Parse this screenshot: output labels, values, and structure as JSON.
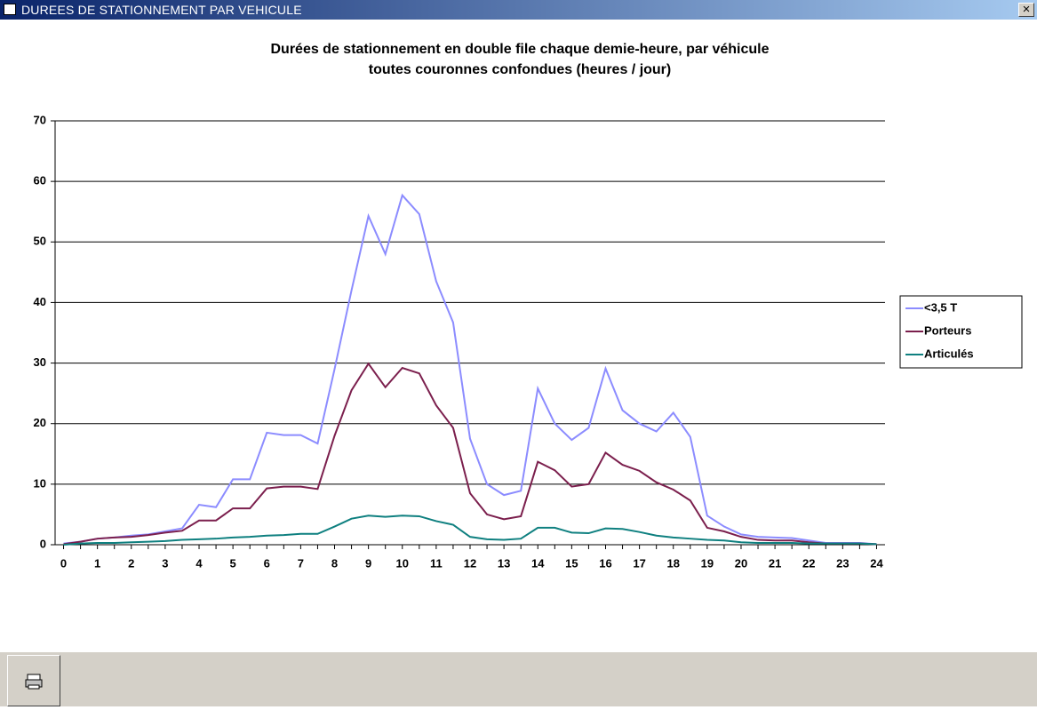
{
  "window": {
    "title": "DUREES DE STATIONNEMENT PAR VEHICULE"
  },
  "chart_data": {
    "type": "line",
    "title": [
      "Durées de stationnement en double file chaque demie-heure, par véhicule",
      "toutes couronnes confondues (heures / jour)"
    ],
    "categories": [
      "0",
      null,
      "1",
      null,
      "2",
      null,
      "3",
      null,
      "4",
      null,
      "5",
      null,
      "6",
      null,
      "7",
      null,
      "8",
      null,
      "9",
      null,
      "10",
      null,
      "11",
      null,
      "12",
      null,
      "13",
      null,
      "14",
      null,
      "15",
      null,
      "16",
      null,
      "17",
      null,
      "18",
      null,
      "19",
      null,
      "20",
      null,
      "21",
      null,
      "22",
      null,
      "23",
      null,
      "24"
    ],
    "series": [
      {
        "name": "<3,5 T",
        "color": "#8c8cff",
        "values": [
          0.2,
          0.5,
          1,
          1.2,
          1.5,
          1.7,
          2.2,
          2.7,
          6.6,
          6.2,
          10.8,
          10.8,
          18.5,
          18.1,
          18.1,
          16.7,
          29,
          42,
          54.3,
          48,
          57.7,
          54.6,
          43.5,
          36.7,
          17.5,
          10,
          8.2,
          8.9,
          25.8,
          20,
          17.3,
          19.3,
          29.1,
          22.2,
          20,
          18.7,
          21.8,
          17.8,
          4.8,
          3,
          1.7,
          1.3,
          1.2,
          1.1,
          0.7,
          0.3,
          0.3,
          0.3,
          0.1
        ]
      },
      {
        "name": "Porteurs",
        "color": "#7b1f4d",
        "values": [
          0.1,
          0.5,
          1,
          1.2,
          1.3,
          1.6,
          2,
          2.3,
          4,
          4,
          6,
          6,
          9.3,
          9.6,
          9.6,
          9.2,
          18,
          25.5,
          29.9,
          26,
          29.2,
          28.3,
          23,
          19.3,
          8.5,
          5,
          4.2,
          4.7,
          13.7,
          12.3,
          9.6,
          10,
          15.2,
          13.2,
          12.2,
          10.3,
          9.1,
          7.3,
          2.8,
          2.2,
          1.3,
          0.8,
          0.7,
          0.7,
          0.4,
          0.2,
          0.2,
          0.2,
          0.1
        ]
      },
      {
        "name": "Articulés",
        "color": "#0f8080",
        "values": [
          0,
          0.2,
          0.3,
          0.3,
          0.4,
          0.5,
          0.6,
          0.8,
          0.9,
          1,
          1.2,
          1.3,
          1.5,
          1.6,
          1.8,
          1.8,
          3,
          4.3,
          4.8,
          4.6,
          4.8,
          4.7,
          3.9,
          3.3,
          1.3,
          0.9,
          0.8,
          1,
          2.8,
          2.8,
          2,
          1.9,
          2.7,
          2.6,
          2.1,
          1.5,
          1.2,
          1,
          0.8,
          0.7,
          0.4,
          0.3,
          0.3,
          0.3,
          0.2,
          0.2,
          0.2,
          0.2,
          0.1
        ]
      }
    ],
    "ylim": [
      0,
      70
    ],
    "yticks": [
      0,
      10,
      20,
      30,
      40,
      50,
      60,
      70
    ],
    "grid": true,
    "legend": "right"
  }
}
